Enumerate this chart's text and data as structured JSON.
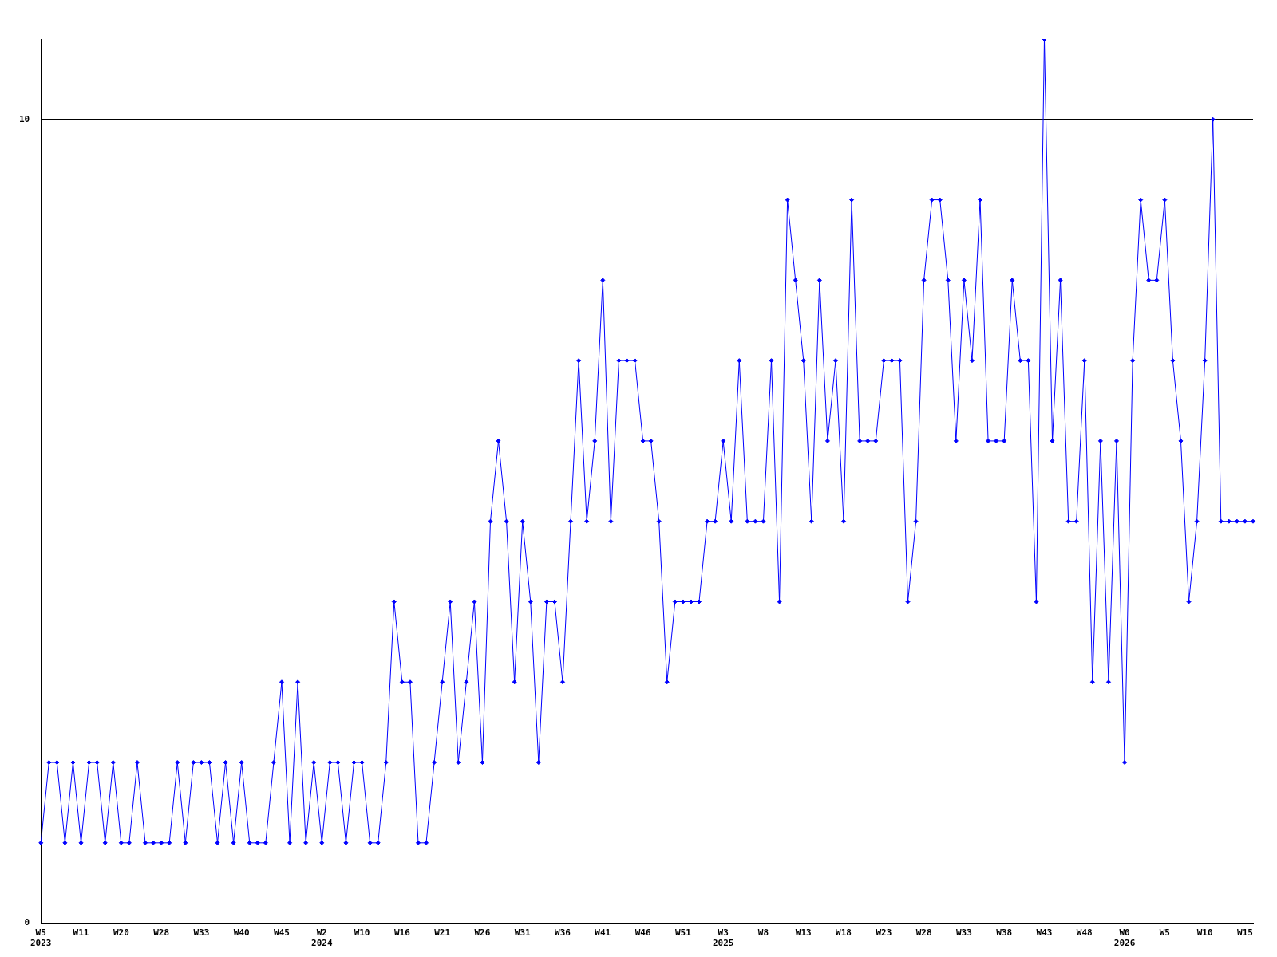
{
  "chart_data": {
    "type": "line",
    "categories": [
      "W5\n2023",
      null,
      null,
      null,
      null,
      "W11",
      null,
      null,
      null,
      null,
      "W20",
      null,
      null,
      null,
      null,
      "W28",
      null,
      null,
      null,
      null,
      "W33",
      null,
      null,
      null,
      null,
      "W40",
      null,
      null,
      null,
      null,
      "W45",
      null,
      null,
      null,
      null,
      "W2\n2024",
      null,
      null,
      null,
      null,
      "W10",
      null,
      null,
      null,
      null,
      "W16",
      null,
      null,
      null,
      null,
      "W21",
      null,
      null,
      null,
      null,
      "W26",
      null,
      null,
      null,
      null,
      "W31",
      null,
      null,
      null,
      null,
      "W36",
      null,
      null,
      null,
      null,
      "W41",
      null,
      null,
      null,
      null,
      "W46",
      null,
      null,
      null,
      null,
      "W51",
      null,
      null,
      null,
      null,
      "W3\n2025",
      null,
      null,
      null,
      null,
      "W8",
      null,
      null,
      null,
      null,
      "W13",
      null,
      null,
      null,
      null,
      "W18",
      null,
      null,
      null,
      null,
      "W23",
      null,
      null,
      null,
      null,
      "W28",
      null,
      null,
      null,
      null,
      "W33",
      null,
      null,
      null,
      null,
      "W38",
      null,
      null,
      null,
      null,
      "W43",
      null,
      null,
      null,
      null,
      "W48",
      null,
      null,
      null,
      null,
      "W0\n2026",
      null,
      null,
      null,
      null,
      "W5",
      null,
      null,
      null,
      null,
      "W10",
      null,
      null,
      null,
      null,
      "W15",
      null
    ],
    "series": [
      {
        "color": "#0000ff",
        "values": [
          1,
          2,
          2,
          1,
          2,
          1,
          2,
          2,
          1,
          2,
          1,
          1,
          2,
          1,
          1,
          1,
          1,
          2,
          1,
          2,
          2,
          2,
          1,
          2,
          1,
          2,
          1,
          1,
          1,
          2,
          3,
          1,
          3,
          1,
          2,
          1,
          2,
          2,
          1,
          2,
          2,
          1,
          1,
          2,
          4,
          3,
          3,
          1,
          1,
          2,
          3,
          4,
          2,
          3,
          4,
          2,
          5,
          6,
          5,
          3,
          5,
          4,
          2,
          4,
          4,
          3,
          5,
          7,
          5,
          6,
          8,
          5,
          7,
          7,
          7,
          6,
          6,
          5,
          3,
          4,
          4,
          4,
          4,
          5,
          5,
          6,
          5,
          7,
          5,
          5,
          5,
          7,
          4,
          9,
          8,
          7,
          5,
          8,
          6,
          7,
          5,
          9,
          6,
          6,
          6,
          7,
          7,
          7,
          4,
          5,
          8,
          9,
          9,
          8,
          6,
          8,
          7,
          9,
          6,
          6,
          6,
          8,
          7,
          7,
          4,
          11,
          6,
          8,
          5,
          5,
          7,
          3,
          6,
          3,
          6,
          2,
          7,
          9,
          8,
          8,
          9,
          7,
          6,
          4,
          5,
          7,
          10,
          5,
          5,
          5,
          5,
          5
        ]
      }
    ],
    "ylim": [
      0,
      11
    ],
    "yticks": [
      0,
      10
    ],
    "grid": "y",
    "legend": false,
    "marker": "diamond",
    "line_style": "solid"
  }
}
